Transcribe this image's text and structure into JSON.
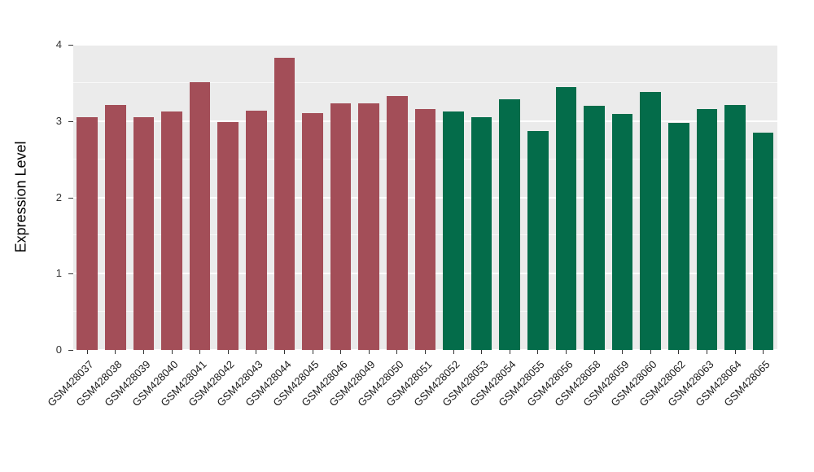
{
  "chart_data": {
    "type": "bar",
    "title": "",
    "xlabel": "",
    "ylabel": "Expression Level",
    "ylim": [
      0,
      4
    ],
    "yticks": [
      0,
      1,
      2,
      3,
      4
    ],
    "grid": "on",
    "legend": "none",
    "panel_background": "#EBEBEB",
    "gridline_color": "#FFFFFF",
    "categories": [
      "GSM428037",
      "GSM428038",
      "GSM428039",
      "GSM428040",
      "GSM428041",
      "GSM428042",
      "GSM428043",
      "GSM428044",
      "GSM428045",
      "GSM428046",
      "GSM428049",
      "GSM428050",
      "GSM428051",
      "GSM428052",
      "GSM428053",
      "GSM428054",
      "GSM428055",
      "GSM428056",
      "GSM428058",
      "GSM428059",
      "GSM428060",
      "GSM428062",
      "GSM428063",
      "GSM428064",
      "GSM428065"
    ],
    "values": [
      3.05,
      3.21,
      3.05,
      3.13,
      3.51,
      2.99,
      3.14,
      3.83,
      3.1,
      3.23,
      3.23,
      3.33,
      3.16,
      3.13,
      3.05,
      3.29,
      2.87,
      3.45,
      3.2,
      3.09,
      3.38,
      2.98,
      3.16,
      3.21,
      2.85
    ],
    "groups": [
      "group1",
      "group1",
      "group1",
      "group1",
      "group1",
      "group1",
      "group1",
      "group1",
      "group1",
      "group1",
      "group1",
      "group1",
      "group1",
      "group2",
      "group2",
      "group2",
      "group2",
      "group2",
      "group2",
      "group2",
      "group2",
      "group2",
      "group2",
      "group2",
      "group2"
    ],
    "group_colors": {
      "group1": "#A34E58",
      "group2": "#046C4A"
    }
  }
}
